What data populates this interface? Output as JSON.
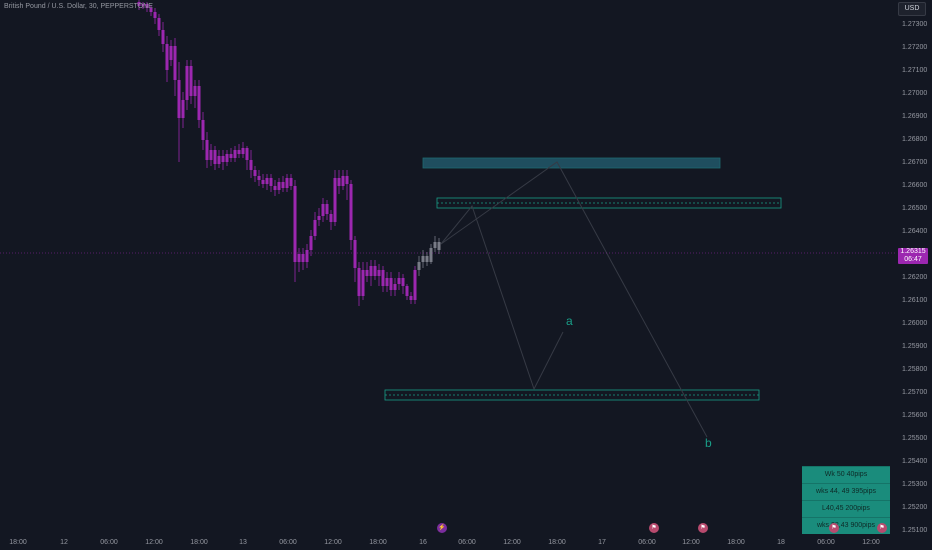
{
  "header": {
    "symbol_title": "British Pound / U.S. Dollar, 30, PEPPERSTONE",
    "currency": "USD"
  },
  "price_axis": {
    "labels": [
      "1.27300",
      "1.27200",
      "1.27100",
      "1.27000",
      "1.26900",
      "1.26800",
      "1.26700",
      "1.26600",
      "1.26500",
      "1.26400",
      "1.26200",
      "1.26100",
      "1.26000",
      "1.25900",
      "1.25800",
      "1.25700",
      "1.25600",
      "1.25500",
      "1.25400",
      "1.25300",
      "1.25200",
      "1.25100"
    ],
    "current_price": "1.26315",
    "countdown": "06:47"
  },
  "time_axis": {
    "labels": [
      "18:00",
      "12",
      "06:00",
      "12:00",
      "18:00",
      "13",
      "06:00",
      "12:00",
      "18:00",
      "16",
      "06:00",
      "12:00",
      "18:00",
      "17",
      "06:00",
      "12:00",
      "18:00",
      "18",
      "06:00",
      "12:00"
    ]
  },
  "annotations": {
    "wave_a": "a",
    "wave_b": "b"
  },
  "stats": [
    "Wk 50 40pips",
    "wks 44, 49 395pips",
    "L40,45 200pips",
    "wks 22,43 900pips"
  ],
  "events": [
    {
      "icon": "lightning-icon",
      "glyph": "⚡"
    },
    {
      "icon": "flag-icon",
      "glyph": "⚑"
    },
    {
      "icon": "flag-icon",
      "glyph": "⚑"
    },
    {
      "icon": "flag-icon",
      "glyph": "⚑"
    },
    {
      "icon": "flag-icon",
      "glyph": "⚑"
    }
  ],
  "colors": {
    "background": "#131722",
    "candle": "#9c27b0",
    "candle_recent": "#787b86",
    "zone": "#1a9e88",
    "zone_fill": "#1f4e5f",
    "price_tag": "#9c27b0"
  }
}
